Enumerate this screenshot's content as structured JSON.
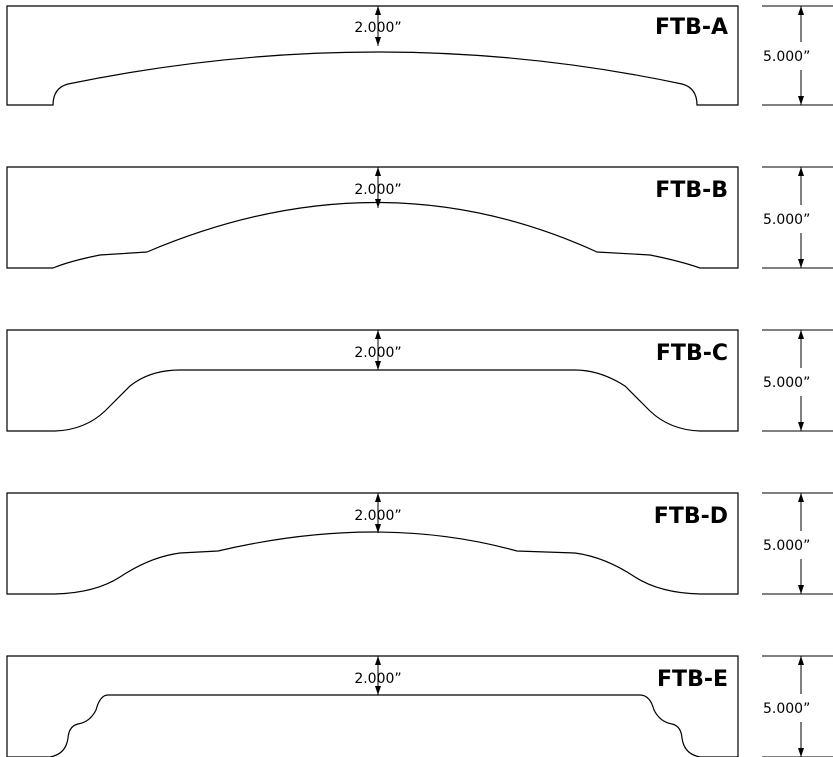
{
  "drawings": [
    {
      "id": "a",
      "label": "FTB-A",
      "center_dim": "2.000”",
      "side_dim": "5.000”"
    },
    {
      "id": "b",
      "label": "FTB-B",
      "center_dim": "2.000”",
      "side_dim": "5.000”"
    },
    {
      "id": "c",
      "label": "FTB-C",
      "center_dim": "2.000”",
      "side_dim": "5.000”"
    },
    {
      "id": "d",
      "label": "FTB-D",
      "center_dim": "2.000”",
      "side_dim": "5.000”"
    },
    {
      "id": "e",
      "label": "FTB-E",
      "center_dim": "2.000”",
      "side_dim": "5.000”"
    }
  ]
}
